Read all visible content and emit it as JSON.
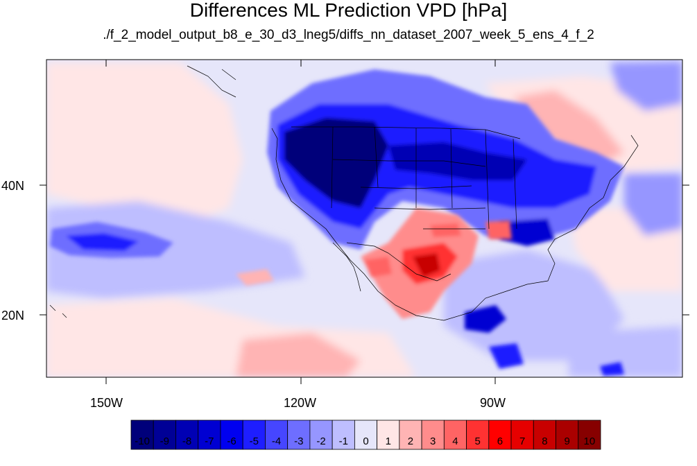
{
  "title": "Differences ML Prediction VPD [hPa]",
  "subtitle": "./f_2_model_output_b8_e_30_d3_lneg5/diffs_nn_dataset_2007_week_5_ens_4_f_2",
  "map": {
    "lon_range": [
      -159,
      -61
    ],
    "lat_range": [
      10,
      59
    ],
    "x_tick_labels": [
      "150W",
      "120W",
      "90W"
    ],
    "y_tick_labels": [
      "40N",
      "20N"
    ]
  },
  "colorbar": {
    "labels": [
      "-10",
      "-9",
      "-8",
      "-7",
      "-6",
      "-5",
      "-4",
      "-3",
      "-2",
      "-1",
      "0",
      "1",
      "2",
      "3",
      "4",
      "5",
      "6",
      "7",
      "8",
      "9",
      "10"
    ],
    "colors": [
      "#00007a",
      "#000096",
      "#0000b4",
      "#0000d2",
      "#0000f0",
      "#1e1eff",
      "#4646ff",
      "#6e6eff",
      "#9696ff",
      "#bebeff",
      "#e6e6fa",
      "#ffe6e6",
      "#ffb4b4",
      "#ff8c8c",
      "#ff6464",
      "#ff3232",
      "#ff0000",
      "#e60000",
      "#c80000",
      "#aa0000",
      "#870000"
    ]
  }
}
